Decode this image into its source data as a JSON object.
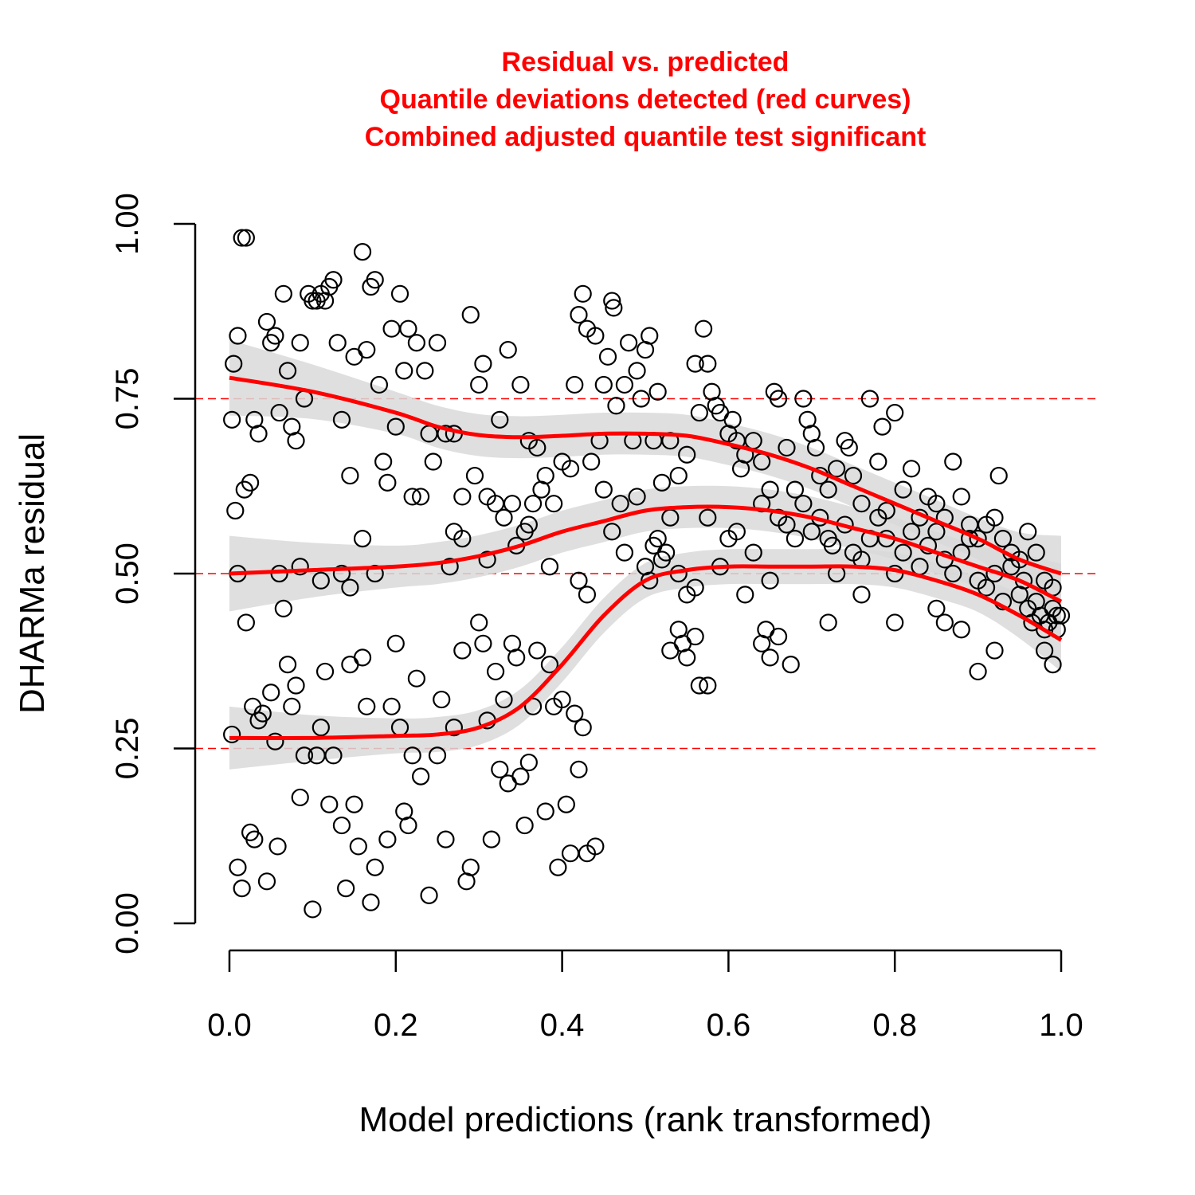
{
  "chart_data": {
    "type": "scatter",
    "title_lines": [
      "Residual vs. predicted",
      "Quantile deviations detected (red curves)",
      "Combined adjusted quantile test significant"
    ],
    "xlabel": "Model predictions (rank transformed)",
    "ylabel": "DHARMa residual",
    "xlim": [
      0,
      1
    ],
    "ylim": [
      0,
      1
    ],
    "x_ticks": [
      "0.0",
      "0.2",
      "0.4",
      "0.6",
      "0.8",
      "1.0"
    ],
    "y_ticks": [
      "0.00",
      "0.25",
      "0.50",
      "0.75",
      "1.00"
    ],
    "reference_lines": [
      0.25,
      0.5,
      0.75
    ],
    "colors": {
      "title": "#ff0000",
      "curves": "#ff0000",
      "band": "#d9d9d9",
      "points": "#000000"
    },
    "quantile_curves": [
      {
        "quantile": 0.25,
        "x": [
          0.0,
          0.1,
          0.2,
          0.25,
          0.3,
          0.35,
          0.4,
          0.45,
          0.5,
          0.55,
          0.6,
          0.65,
          0.7,
          0.75,
          0.8,
          0.85,
          0.9,
          0.95,
          1.0
        ],
        "y": [
          0.265,
          0.265,
          0.268,
          0.27,
          0.28,
          0.31,
          0.37,
          0.44,
          0.49,
          0.505,
          0.51,
          0.51,
          0.51,
          0.51,
          0.505,
          0.49,
          0.47,
          0.44,
          0.405
        ],
        "band": 0.025
      },
      {
        "quantile": 0.5,
        "x": [
          0.0,
          0.1,
          0.2,
          0.25,
          0.3,
          0.35,
          0.4,
          0.45,
          0.5,
          0.55,
          0.6,
          0.65,
          0.7,
          0.75,
          0.8,
          0.85,
          0.9,
          0.95,
          1.0
        ],
        "y": [
          0.5,
          0.505,
          0.51,
          0.515,
          0.525,
          0.54,
          0.56,
          0.575,
          0.59,
          0.595,
          0.595,
          0.59,
          0.58,
          0.565,
          0.55,
          0.53,
          0.51,
          0.49,
          0.46
        ],
        "band": 0.03
      },
      {
        "quantile": 0.75,
        "x": [
          0.0,
          0.1,
          0.2,
          0.25,
          0.3,
          0.35,
          0.4,
          0.45,
          0.5,
          0.55,
          0.6,
          0.65,
          0.7,
          0.75,
          0.8,
          0.85,
          0.9,
          0.95,
          1.0
        ],
        "y": [
          0.78,
          0.76,
          0.73,
          0.71,
          0.698,
          0.695,
          0.697,
          0.7,
          0.7,
          0.697,
          0.685,
          0.67,
          0.65,
          0.625,
          0.6,
          0.575,
          0.55,
          0.52,
          0.5
        ],
        "band": 0.03
      }
    ],
    "points": [
      [
        0.005,
        0.8
      ],
      [
        0.003,
        0.72
      ],
      [
        0.01,
        0.84
      ],
      [
        0.007,
        0.59
      ],
      [
        0.015,
        0.98
      ],
      [
        0.02,
        0.98
      ],
      [
        0.018,
        0.62
      ],
      [
        0.025,
        0.63
      ],
      [
        0.03,
        0.72
      ],
      [
        0.035,
        0.7
      ],
      [
        0.045,
        0.86
      ],
      [
        0.05,
        0.83
      ],
      [
        0.055,
        0.84
      ],
      [
        0.06,
        0.73
      ],
      [
        0.065,
        0.9
      ],
      [
        0.07,
        0.79
      ],
      [
        0.075,
        0.71
      ],
      [
        0.08,
        0.69
      ],
      [
        0.085,
        0.83
      ],
      [
        0.09,
        0.75
      ],
      [
        0.095,
        0.9
      ],
      [
        0.1,
        0.89
      ],
      [
        0.105,
        0.89
      ],
      [
        0.11,
        0.9
      ],
      [
        0.115,
        0.89
      ],
      [
        0.12,
        0.91
      ],
      [
        0.125,
        0.92
      ],
      [
        0.13,
        0.83
      ],
      [
        0.135,
        0.72
      ],
      [
        0.145,
        0.64
      ],
      [
        0.15,
        0.81
      ],
      [
        0.16,
        0.96
      ],
      [
        0.165,
        0.82
      ],
      [
        0.17,
        0.91
      ],
      [
        0.175,
        0.92
      ],
      [
        0.18,
        0.77
      ],
      [
        0.185,
        0.66
      ],
      [
        0.19,
        0.63
      ],
      [
        0.195,
        0.85
      ],
      [
        0.2,
        0.71
      ],
      [
        0.205,
        0.9
      ],
      [
        0.21,
        0.79
      ],
      [
        0.215,
        0.85
      ],
      [
        0.22,
        0.61
      ],
      [
        0.225,
        0.83
      ],
      [
        0.23,
        0.61
      ],
      [
        0.235,
        0.79
      ],
      [
        0.24,
        0.7
      ],
      [
        0.245,
        0.66
      ],
      [
        0.25,
        0.83
      ],
      [
        0.26,
        0.7
      ],
      [
        0.27,
        0.7
      ],
      [
        0.28,
        0.61
      ],
      [
        0.29,
        0.87
      ],
      [
        0.295,
        0.64
      ],
      [
        0.3,
        0.77
      ],
      [
        0.305,
        0.8
      ],
      [
        0.31,
        0.61
      ],
      [
        0.32,
        0.6
      ],
      [
        0.325,
        0.72
      ],
      [
        0.33,
        0.58
      ],
      [
        0.335,
        0.82
      ],
      [
        0.34,
        0.6
      ],
      [
        0.35,
        0.77
      ],
      [
        0.355,
        0.56
      ],
      [
        0.36,
        0.69
      ],
      [
        0.365,
        0.6
      ],
      [
        0.37,
        0.68
      ],
      [
        0.375,
        0.62
      ],
      [
        0.38,
        0.64
      ],
      [
        0.39,
        0.6
      ],
      [
        0.4,
        0.66
      ],
      [
        0.41,
        0.65
      ],
      [
        0.415,
        0.77
      ],
      [
        0.42,
        0.87
      ],
      [
        0.425,
        0.9
      ],
      [
        0.43,
        0.85
      ],
      [
        0.435,
        0.66
      ],
      [
        0.44,
        0.84
      ],
      [
        0.445,
        0.69
      ],
      [
        0.45,
        0.77
      ],
      [
        0.455,
        0.81
      ],
      [
        0.46,
        0.89
      ],
      [
        0.462,
        0.88
      ],
      [
        0.465,
        0.74
      ],
      [
        0.47,
        0.6
      ],
      [
        0.475,
        0.77
      ],
      [
        0.48,
        0.83
      ],
      [
        0.485,
        0.69
      ],
      [
        0.49,
        0.79
      ],
      [
        0.495,
        0.75
      ],
      [
        0.5,
        0.82
      ],
      [
        0.505,
        0.84
      ],
      [
        0.51,
        0.69
      ],
      [
        0.515,
        0.76
      ],
      [
        0.52,
        0.63
      ],
      [
        0.53,
        0.69
      ],
      [
        0.54,
        0.64
      ],
      [
        0.55,
        0.67
      ],
      [
        0.56,
        0.8
      ],
      [
        0.565,
        0.73
      ],
      [
        0.57,
        0.85
      ],
      [
        0.575,
        0.8
      ],
      [
        0.58,
        0.76
      ],
      [
        0.585,
        0.74
      ],
      [
        0.59,
        0.73
      ],
      [
        0.6,
        0.7
      ],
      [
        0.605,
        0.72
      ],
      [
        0.61,
        0.69
      ],
      [
        0.615,
        0.65
      ],
      [
        0.62,
        0.67
      ],
      [
        0.63,
        0.69
      ],
      [
        0.64,
        0.66
      ],
      [
        0.65,
        0.62
      ],
      [
        0.655,
        0.76
      ],
      [
        0.66,
        0.75
      ],
      [
        0.67,
        0.68
      ],
      [
        0.68,
        0.62
      ],
      [
        0.69,
        0.75
      ],
      [
        0.695,
        0.72
      ],
      [
        0.7,
        0.7
      ],
      [
        0.705,
        0.68
      ],
      [
        0.71,
        0.64
      ],
      [
        0.72,
        0.62
      ],
      [
        0.73,
        0.65
      ],
      [
        0.74,
        0.69
      ],
      [
        0.745,
        0.68
      ],
      [
        0.75,
        0.64
      ],
      [
        0.76,
        0.6
      ],
      [
        0.77,
        0.75
      ],
      [
        0.78,
        0.66
      ],
      [
        0.785,
        0.71
      ],
      [
        0.79,
        0.59
      ],
      [
        0.8,
        0.73
      ],
      [
        0.81,
        0.62
      ],
      [
        0.82,
        0.65
      ],
      [
        0.83,
        0.58
      ],
      [
        0.84,
        0.61
      ],
      [
        0.85,
        0.6
      ],
      [
        0.86,
        0.58
      ],
      [
        0.87,
        0.66
      ],
      [
        0.88,
        0.61
      ],
      [
        0.89,
        0.57
      ],
      [
        0.9,
        0.55
      ],
      [
        0.91,
        0.57
      ],
      [
        0.92,
        0.58
      ],
      [
        0.925,
        0.64
      ],
      [
        0.93,
        0.55
      ],
      [
        0.94,
        0.53
      ],
      [
        0.95,
        0.52
      ],
      [
        0.96,
        0.56
      ],
      [
        0.97,
        0.53
      ],
      [
        0.98,
        0.49
      ],
      [
        0.99,
        0.48
      ],
      [
        0.995,
        0.44
      ],
      [
        0.01,
        0.5
      ],
      [
        0.06,
        0.5
      ],
      [
        0.085,
        0.51
      ],
      [
        0.11,
        0.49
      ],
      [
        0.135,
        0.5
      ],
      [
        0.145,
        0.48
      ],
      [
        0.16,
        0.55
      ],
      [
        0.175,
        0.5
      ],
      [
        0.265,
        0.51
      ],
      [
        0.27,
        0.56
      ],
      [
        0.28,
        0.55
      ],
      [
        0.31,
        0.52
      ],
      [
        0.345,
        0.54
      ],
      [
        0.36,
        0.57
      ],
      [
        0.385,
        0.51
      ],
      [
        0.42,
        0.49
      ],
      [
        0.43,
        0.47
      ],
      [
        0.45,
        0.62
      ],
      [
        0.46,
        0.56
      ],
      [
        0.475,
        0.53
      ],
      [
        0.49,
        0.61
      ],
      [
        0.5,
        0.51
      ],
      [
        0.505,
        0.49
      ],
      [
        0.51,
        0.54
      ],
      [
        0.515,
        0.55
      ],
      [
        0.52,
        0.52
      ],
      [
        0.525,
        0.53
      ],
      [
        0.53,
        0.58
      ],
      [
        0.54,
        0.5
      ],
      [
        0.55,
        0.47
      ],
      [
        0.56,
        0.48
      ],
      [
        0.575,
        0.58
      ],
      [
        0.59,
        0.51
      ],
      [
        0.6,
        0.55
      ],
      [
        0.61,
        0.56
      ],
      [
        0.62,
        0.47
      ],
      [
        0.63,
        0.53
      ],
      [
        0.64,
        0.6
      ],
      [
        0.65,
        0.49
      ],
      [
        0.66,
        0.58
      ],
      [
        0.67,
        0.57
      ],
      [
        0.68,
        0.55
      ],
      [
        0.69,
        0.6
      ],
      [
        0.7,
        0.56
      ],
      [
        0.71,
        0.58
      ],
      [
        0.72,
        0.55
      ],
      [
        0.725,
        0.54
      ],
      [
        0.73,
        0.5
      ],
      [
        0.74,
        0.57
      ],
      [
        0.75,
        0.53
      ],
      [
        0.76,
        0.52
      ],
      [
        0.77,
        0.55
      ],
      [
        0.78,
        0.58
      ],
      [
        0.79,
        0.55
      ],
      [
        0.8,
        0.5
      ],
      [
        0.81,
        0.53
      ],
      [
        0.82,
        0.56
      ],
      [
        0.83,
        0.51
      ],
      [
        0.84,
        0.54
      ],
      [
        0.85,
        0.56
      ],
      [
        0.86,
        0.52
      ],
      [
        0.87,
        0.5
      ],
      [
        0.88,
        0.53
      ],
      [
        0.89,
        0.55
      ],
      [
        0.9,
        0.49
      ],
      [
        0.91,
        0.48
      ],
      [
        0.92,
        0.5
      ],
      [
        0.93,
        0.46
      ],
      [
        0.94,
        0.51
      ],
      [
        0.95,
        0.47
      ],
      [
        0.96,
        0.45
      ],
      [
        0.97,
        0.46
      ],
      [
        0.975,
        0.44
      ],
      [
        0.98,
        0.42
      ],
      [
        0.985,
        0.43
      ],
      [
        0.99,
        0.45
      ],
      [
        0.995,
        0.42
      ],
      [
        1.0,
        0.44
      ],
      [
        0.965,
        0.43
      ],
      [
        0.955,
        0.49
      ],
      [
        0.003,
        0.27
      ],
      [
        0.01,
        0.08
      ],
      [
        0.015,
        0.05
      ],
      [
        0.02,
        0.43
      ],
      [
        0.025,
        0.13
      ],
      [
        0.028,
        0.31
      ],
      [
        0.03,
        0.12
      ],
      [
        0.035,
        0.29
      ],
      [
        0.04,
        0.3
      ],
      [
        0.045,
        0.06
      ],
      [
        0.05,
        0.33
      ],
      [
        0.055,
        0.26
      ],
      [
        0.058,
        0.11
      ],
      [
        0.065,
        0.45
      ],
      [
        0.07,
        0.37
      ],
      [
        0.075,
        0.31
      ],
      [
        0.08,
        0.34
      ],
      [
        0.085,
        0.18
      ],
      [
        0.09,
        0.24
      ],
      [
        0.1,
        0.02
      ],
      [
        0.105,
        0.24
      ],
      [
        0.11,
        0.28
      ],
      [
        0.115,
        0.36
      ],
      [
        0.12,
        0.17
      ],
      [
        0.125,
        0.24
      ],
      [
        0.135,
        0.14
      ],
      [
        0.14,
        0.05
      ],
      [
        0.145,
        0.37
      ],
      [
        0.15,
        0.17
      ],
      [
        0.155,
        0.11
      ],
      [
        0.16,
        0.38
      ],
      [
        0.165,
        0.31
      ],
      [
        0.17,
        0.03
      ],
      [
        0.175,
        0.08
      ],
      [
        0.19,
        0.12
      ],
      [
        0.195,
        0.31
      ],
      [
        0.2,
        0.4
      ],
      [
        0.205,
        0.28
      ],
      [
        0.21,
        0.16
      ],
      [
        0.215,
        0.14
      ],
      [
        0.22,
        0.24
      ],
      [
        0.225,
        0.35
      ],
      [
        0.23,
        0.21
      ],
      [
        0.24,
        0.04
      ],
      [
        0.25,
        0.24
      ],
      [
        0.255,
        0.32
      ],
      [
        0.26,
        0.12
      ],
      [
        0.27,
        0.28
      ],
      [
        0.28,
        0.39
      ],
      [
        0.285,
        0.06
      ],
      [
        0.29,
        0.08
      ],
      [
        0.3,
        0.43
      ],
      [
        0.305,
        0.4
      ],
      [
        0.31,
        0.29
      ],
      [
        0.315,
        0.12
      ],
      [
        0.32,
        0.36
      ],
      [
        0.325,
        0.22
      ],
      [
        0.33,
        0.32
      ],
      [
        0.335,
        0.2
      ],
      [
        0.34,
        0.4
      ],
      [
        0.345,
        0.38
      ],
      [
        0.35,
        0.21
      ],
      [
        0.355,
        0.14
      ],
      [
        0.36,
        0.23
      ],
      [
        0.365,
        0.31
      ],
      [
        0.37,
        0.39
      ],
      [
        0.38,
        0.16
      ],
      [
        0.385,
        0.37
      ],
      [
        0.39,
        0.31
      ],
      [
        0.395,
        0.08
      ],
      [
        0.4,
        0.32
      ],
      [
        0.405,
        0.17
      ],
      [
        0.41,
        0.1
      ],
      [
        0.415,
        0.3
      ],
      [
        0.42,
        0.22
      ],
      [
        0.425,
        0.28
      ],
      [
        0.43,
        0.1
      ],
      [
        0.44,
        0.11
      ],
      [
        0.53,
        0.39
      ],
      [
        0.54,
        0.42
      ],
      [
        0.545,
        0.4
      ],
      [
        0.55,
        0.38
      ],
      [
        0.56,
        0.41
      ],
      [
        0.565,
        0.34
      ],
      [
        0.575,
        0.34
      ],
      [
        0.64,
        0.4
      ],
      [
        0.645,
        0.42
      ],
      [
        0.65,
        0.38
      ],
      [
        0.66,
        0.41
      ],
      [
        0.675,
        0.37
      ],
      [
        0.9,
        0.36
      ],
      [
        0.92,
        0.39
      ],
      [
        0.98,
        0.39
      ],
      [
        0.99,
        0.37
      ],
      [
        0.8,
        0.43
      ],
      [
        0.85,
        0.45
      ],
      [
        0.86,
        0.43
      ],
      [
        0.88,
        0.42
      ],
      [
        0.76,
        0.47
      ],
      [
        0.72,
        0.43
      ]
    ]
  }
}
